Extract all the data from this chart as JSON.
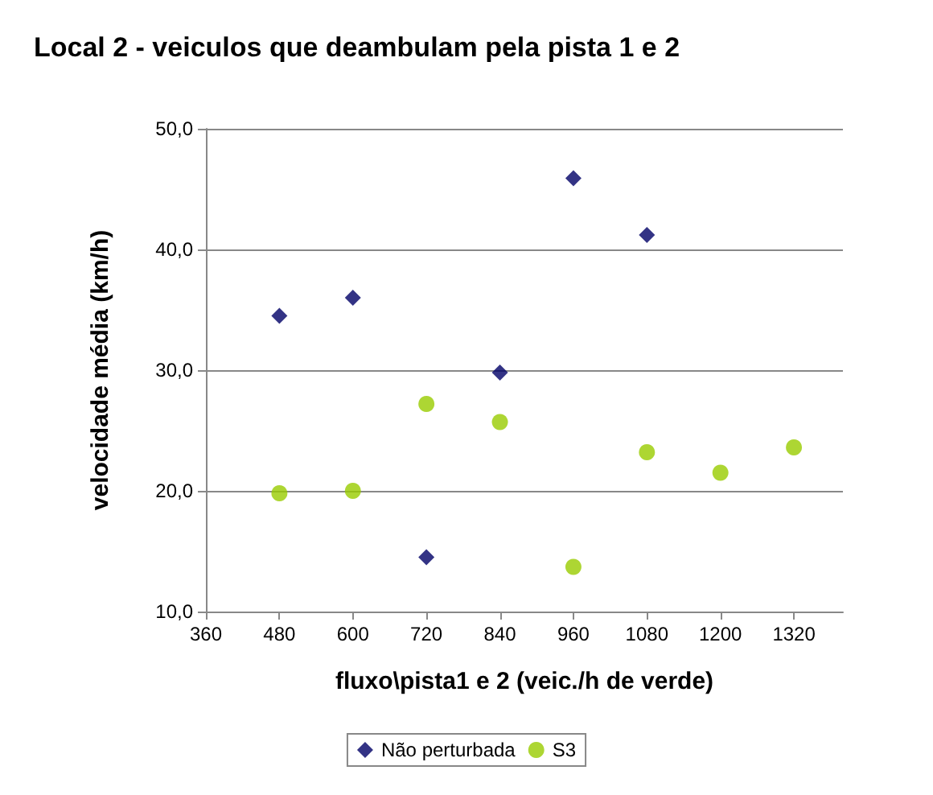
{
  "chart_data": {
    "type": "scatter",
    "title": "Local 2 - veiculos que deambulam pela pista 1 e 2",
    "xlabel": "fluxo\\pista1 e 2 (veic./h de verde)",
    "ylabel": "velocidade média (km/h)",
    "xlim": [
      360,
      1400
    ],
    "xticks": [
      360,
      480,
      600,
      720,
      840,
      960,
      1080,
      1200,
      1320
    ],
    "ylim": [
      10,
      50
    ],
    "yticks": [
      {
        "value": 10,
        "label": "10,0"
      },
      {
        "value": 20,
        "label": "20,0"
      },
      {
        "value": 30,
        "label": "30,0"
      },
      {
        "value": 40,
        "label": "40,0"
      },
      {
        "value": 50,
        "label": "50,0"
      }
    ],
    "grid": "y",
    "legend": "bottom",
    "series": [
      {
        "name": "Não perturbada",
        "color": "#000066",
        "marker": "diamond",
        "x": [
          480,
          600,
          720,
          840,
          960,
          1080
        ],
        "values": [
          34.5,
          36.0,
          14.5,
          29.8,
          45.9,
          41.2
        ]
      },
      {
        "name": "S3",
        "color": "#99cc00",
        "marker": "circle",
        "x": [
          480,
          600,
          720,
          840,
          960,
          1080,
          1200,
          1320
        ],
        "values": [
          19.8,
          20.0,
          27.2,
          25.7,
          13.7,
          23.2,
          21.5,
          23.6
        ]
      }
    ]
  }
}
